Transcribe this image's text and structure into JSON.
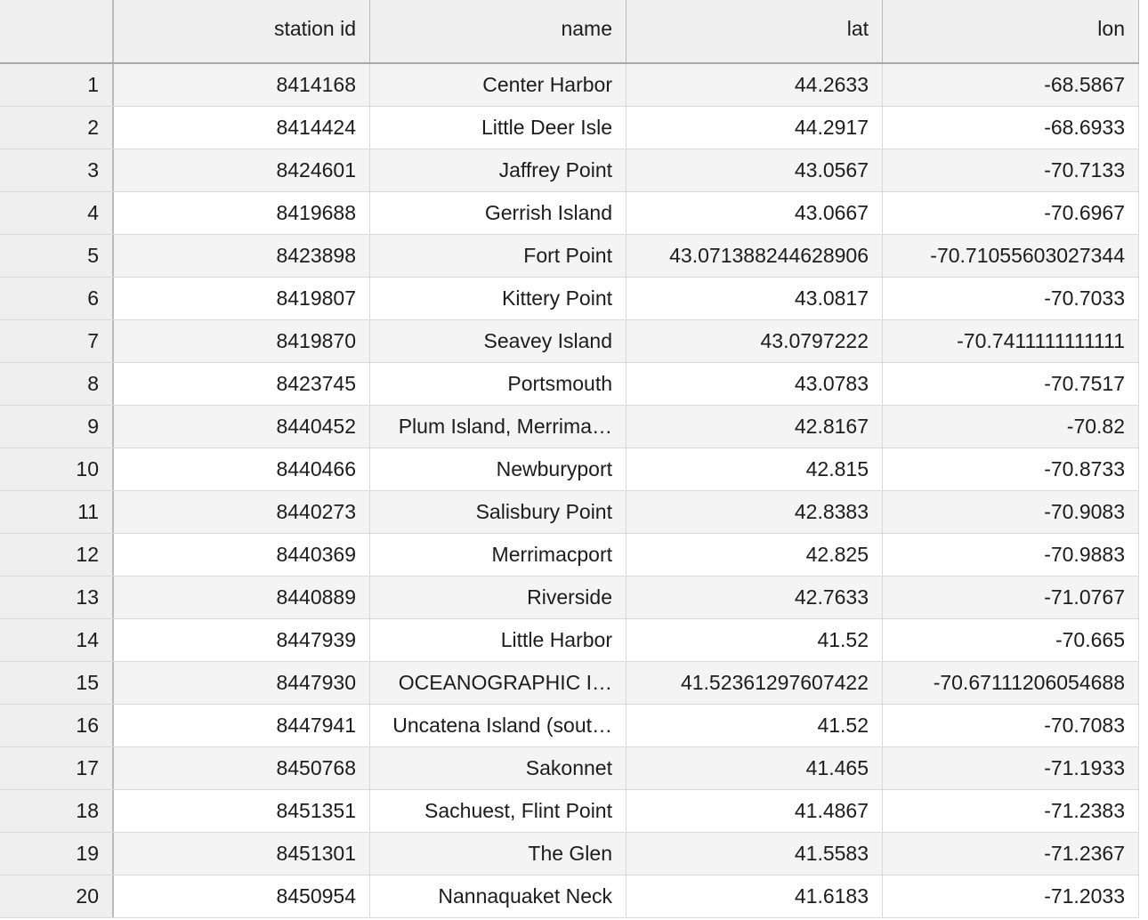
{
  "table": {
    "columns": [
      "",
      "station id",
      "name",
      "lat",
      "lon"
    ],
    "rows": [
      [
        "1",
        "8414168",
        "Center Harbor",
        "44.2633",
        "-68.5867"
      ],
      [
        "2",
        "8414424",
        "Little Deer Isle",
        "44.2917",
        "-68.6933"
      ],
      [
        "3",
        "8424601",
        "Jaffrey Point",
        "43.0567",
        "-70.7133"
      ],
      [
        "4",
        "8419688",
        "Gerrish Island",
        "43.0667",
        "-70.6967"
      ],
      [
        "5",
        "8423898",
        "Fort Point",
        "43.071388244628906",
        "-70.71055603027344"
      ],
      [
        "6",
        "8419807",
        "Kittery Point",
        "43.0817",
        "-70.7033"
      ],
      [
        "7",
        "8419870",
        "Seavey Island",
        "43.0797222",
        "-70.7411111111111"
      ],
      [
        "8",
        "8423745",
        "Portsmouth",
        "43.0783",
        "-70.7517"
      ],
      [
        "9",
        "8440452",
        "Plum Island, Merrima…",
        "42.8167",
        "-70.82"
      ],
      [
        "10",
        "8440466",
        "Newburyport",
        "42.815",
        "-70.8733"
      ],
      [
        "11",
        "8440273",
        "Salisbury Point",
        "42.8383",
        "-70.9083"
      ],
      [
        "12",
        "8440369",
        "Merrimacport",
        "42.825",
        "-70.9883"
      ],
      [
        "13",
        "8440889",
        "Riverside",
        "42.7633",
        "-71.0767"
      ],
      [
        "14",
        "8447939",
        "Little Harbor",
        "41.52",
        "-70.665"
      ],
      [
        "15",
        "8447930",
        "OCEANOGRAPHIC I…",
        "41.52361297607422",
        "-70.67111206054688"
      ],
      [
        "16",
        "8447941",
        "Uncatena Island (sout…",
        "41.52",
        "-70.7083"
      ],
      [
        "17",
        "8450768",
        "Sakonnet",
        "41.465",
        "-71.1933"
      ],
      [
        "18",
        "8451351",
        "Sachuest, Flint Point",
        "41.4867",
        "-71.2383"
      ],
      [
        "19",
        "8451301",
        "The Glen",
        "41.5583",
        "-71.2367"
      ],
      [
        "20",
        "8450954",
        "Nannaquaket Neck",
        "41.6183",
        "-71.2033"
      ]
    ]
  }
}
